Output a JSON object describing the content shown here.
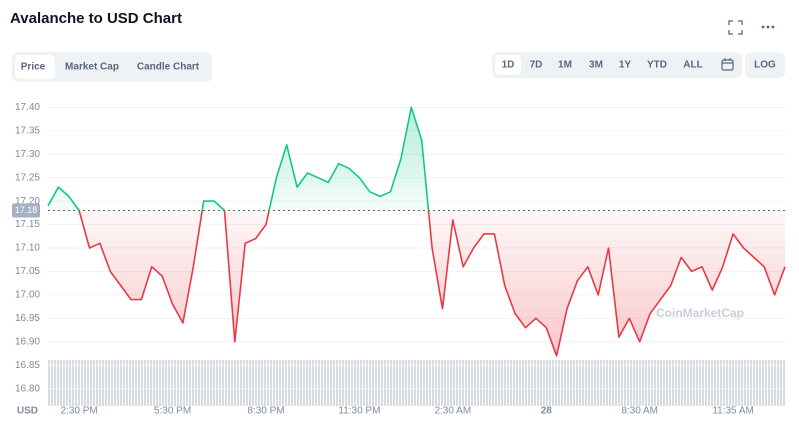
{
  "ui": {
    "tabs": [
      "Price",
      "Market Cap",
      "Candle Chart"
    ],
    "ranges": [
      "1D",
      "7D",
      "1M",
      "3M",
      "1Y",
      "YTD",
      "ALL"
    ],
    "log": "LOG",
    "watermark": "CoinMarketCap"
  },
  "chart_data": {
    "type": "line",
    "title": "Avalanche to USD Chart",
    "y_unit_label": "USD",
    "categories": [
      null,
      null,
      null,
      "2:30 PM",
      null,
      null,
      null,
      null,
      null,
      null,
      null,
      null,
      "5:30 PM",
      null,
      null,
      null,
      null,
      null,
      null,
      null,
      null,
      "8:30 PM",
      null,
      null,
      null,
      null,
      null,
      null,
      null,
      null,
      "11:30 PM",
      null,
      null,
      null,
      null,
      null,
      null,
      null,
      null,
      "2:30 AM",
      null,
      null,
      null,
      null,
      null,
      null,
      null,
      null,
      "28",
      null,
      null,
      null,
      null,
      null,
      null,
      null,
      null,
      "8:30 AM",
      null,
      null,
      null,
      null,
      null,
      null,
      null,
      null,
      "11:35 AM",
      null,
      null,
      null,
      null,
      null
    ],
    "values": [
      17.19,
      17.23,
      17.21,
      17.18,
      17.1,
      17.11,
      17.05,
      17.02,
      16.99,
      16.99,
      17.06,
      17.04,
      16.98,
      16.94,
      17.06,
      17.2,
      17.2,
      17.18,
      16.9,
      17.11,
      17.12,
      17.15,
      17.25,
      17.32,
      17.23,
      17.26,
      17.25,
      17.24,
      17.28,
      17.27,
      17.25,
      17.22,
      17.21,
      17.22,
      17.29,
      17.4,
      17.33,
      17.1,
      16.97,
      17.16,
      17.06,
      17.1,
      17.13,
      17.13,
      17.02,
      16.96,
      16.93,
      16.95,
      16.93,
      16.87,
      16.97,
      17.03,
      17.06,
      17.0,
      17.1,
      16.91,
      16.95,
      16.9,
      16.96,
      16.99,
      17.02,
      17.08,
      17.05,
      17.06,
      17.01,
      17.06,
      17.13,
      17.1,
      17.08,
      17.06,
      17.0,
      17.06
    ],
    "baseline": 17.18,
    "up_color": "#16c784",
    "down_color": "#ea3943",
    "ylim": [
      16.78,
      17.42
    ],
    "yticks": [
      {
        "value": 16.8,
        "label": "16.80"
      },
      16.85,
      {
        "value": 16.9,
        "label": "16.90"
      },
      16.95,
      {
        "value": 17,
        "label": "17.00"
      },
      17.05,
      {
        "value": 17.1,
        "label": "17.10"
      },
      17.15,
      {
        "value": 17.2,
        "label": "17.20"
      },
      17.25,
      {
        "value": 17.3,
        "label": "17.30"
      },
      17.35,
      {
        "value": 17.4,
        "label": "17.40"
      }
    ],
    "grid": true
  }
}
